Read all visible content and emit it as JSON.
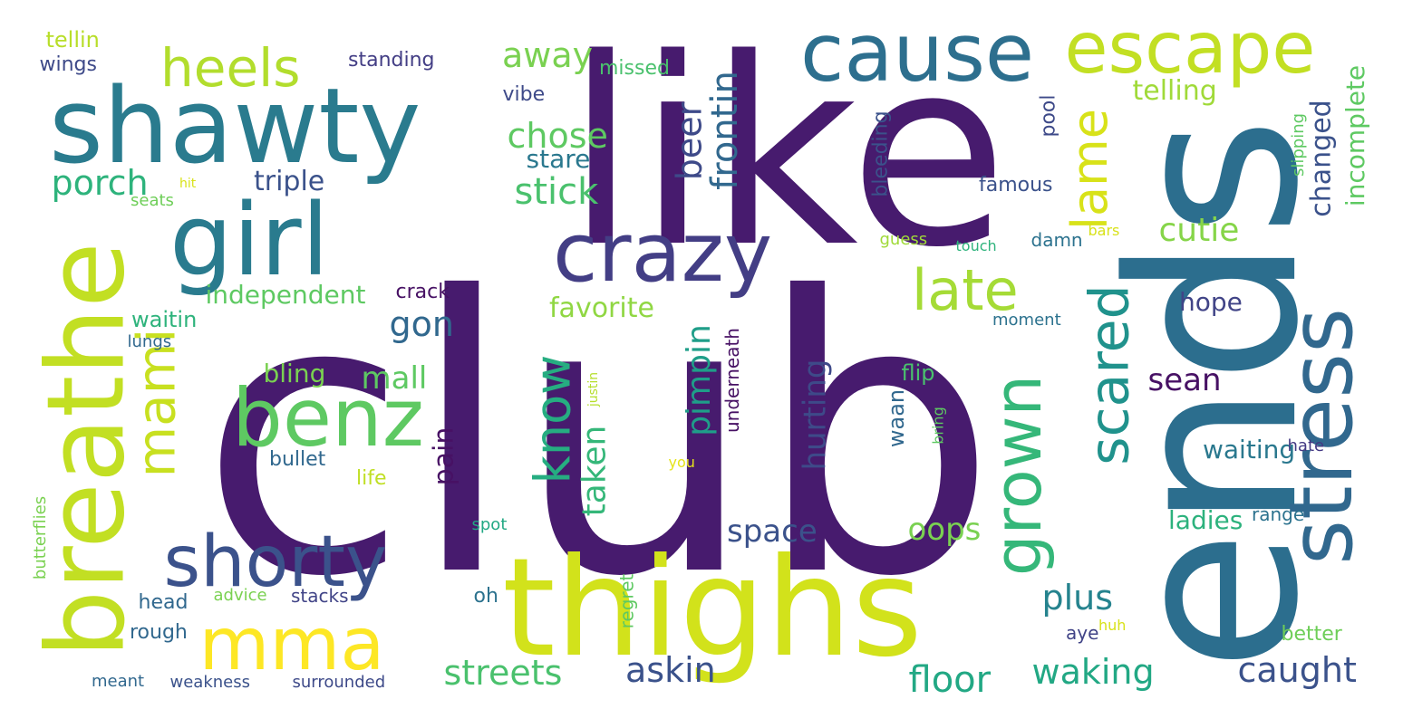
{
  "cloud": {
    "words": [
      {
        "text": "club",
        "color": "#471b6e"
      },
      {
        "text": "like",
        "color": "#471b6e"
      },
      {
        "text": "ends",
        "color": "#2c6e8e"
      },
      {
        "text": "thighs",
        "color": "#d2e21b"
      },
      {
        "text": "shawty",
        "color": "#2a7b8e"
      },
      {
        "text": "girl",
        "color": "#2a7b8e"
      },
      {
        "text": "breathe",
        "color": "#c2df23"
      },
      {
        "text": "crazy",
        "color": "#433e85"
      },
      {
        "text": "cause",
        "color": "#2d6f8e"
      },
      {
        "text": "escape",
        "color": "#c2df23"
      },
      {
        "text": "stress",
        "color": "#31688e"
      },
      {
        "text": "benz",
        "color": "#5ec962"
      },
      {
        "text": "mma",
        "color": "#fde725"
      },
      {
        "text": "shorty",
        "color": "#3b528b"
      },
      {
        "text": "heels",
        "color": "#b2dd2d"
      },
      {
        "text": "mami",
        "color": "#c8e020"
      },
      {
        "text": "grown",
        "color": "#35b779"
      },
      {
        "text": "scared",
        "color": "#20928c"
      },
      {
        "text": "lame",
        "color": "#d8e219"
      },
      {
        "text": "late",
        "color": "#a5db36"
      },
      {
        "text": "know",
        "color": "#26ad81"
      },
      {
        "text": "away",
        "color": "#7ad151"
      },
      {
        "text": "chose",
        "color": "#5ec962"
      },
      {
        "text": "stick",
        "color": "#4ac16d"
      },
      {
        "text": "stare",
        "color": "#2a788e"
      },
      {
        "text": "beer",
        "color": "#3e4a89"
      },
      {
        "text": "frontin",
        "color": "#31688e"
      },
      {
        "text": "porch",
        "color": "#2eb37c"
      },
      {
        "text": "triple",
        "color": "#3b528b"
      },
      {
        "text": "telling",
        "color": "#a0da39"
      },
      {
        "text": "changed",
        "color": "#3b528b"
      },
      {
        "text": "incomplete",
        "color": "#5ec962"
      },
      {
        "text": "cutie",
        "color": "#86d549"
      },
      {
        "text": "gon",
        "color": "#31688e"
      },
      {
        "text": "independent",
        "color": "#5ec962"
      },
      {
        "text": "crack",
        "color": "#471164"
      },
      {
        "text": "favorite",
        "color": "#90d743"
      },
      {
        "text": "pimpin",
        "color": "#1f9e89"
      },
      {
        "text": "hurting",
        "color": "#3e4a89"
      },
      {
        "text": "taken",
        "color": "#35b779"
      },
      {
        "text": "mall",
        "color": "#5ec962"
      },
      {
        "text": "bling",
        "color": "#7ad151"
      },
      {
        "text": "pain",
        "color": "#471164"
      },
      {
        "text": "space",
        "color": "#3b528b"
      },
      {
        "text": "oops",
        "color": "#7ad151"
      },
      {
        "text": "sean",
        "color": "#471164"
      },
      {
        "text": "hope",
        "color": "#414487"
      },
      {
        "text": "waiting",
        "color": "#2a788e"
      },
      {
        "text": "plus",
        "color": "#25838e"
      },
      {
        "text": "ladies",
        "color": "#2db27d"
      },
      {
        "text": "streets",
        "color": "#4ac16d"
      },
      {
        "text": "askin",
        "color": "#3b528b"
      },
      {
        "text": "floor",
        "color": "#22a884"
      },
      {
        "text": "waking",
        "color": "#22a884"
      },
      {
        "text": "caught",
        "color": "#3b528b"
      },
      {
        "text": "tellin",
        "color": "#b8de29"
      },
      {
        "text": "wings",
        "color": "#3e4a89"
      },
      {
        "text": "standing",
        "color": "#433e85"
      },
      {
        "text": "missed",
        "color": "#4ac16d"
      },
      {
        "text": "vibe",
        "color": "#3e4a89"
      },
      {
        "text": "hit",
        "color": "#d8e219"
      },
      {
        "text": "seats",
        "color": "#6ece58"
      },
      {
        "text": "famous",
        "color": "#3b528b"
      },
      {
        "text": "bleeding",
        "color": "#3b528b"
      },
      {
        "text": "pool",
        "color": "#3e4a89"
      },
      {
        "text": "slipping",
        "color": "#5ec962"
      },
      {
        "text": "guess",
        "color": "#a0da39"
      },
      {
        "text": "touch",
        "color": "#2eb37c"
      },
      {
        "text": "damn",
        "color": "#2c728e"
      },
      {
        "text": "bars",
        "color": "#d8e219"
      },
      {
        "text": "waitin",
        "color": "#2eb37c"
      },
      {
        "text": "lungs",
        "color": "#31688e"
      },
      {
        "text": "moment",
        "color": "#2c728e"
      },
      {
        "text": "justin",
        "color": "#b5de2b"
      },
      {
        "text": "underneath",
        "color": "#471164"
      },
      {
        "text": "flip",
        "color": "#4ac16d"
      },
      {
        "text": "waan",
        "color": "#31688e"
      },
      {
        "text": "bring",
        "color": "#5ec962"
      },
      {
        "text": "hate",
        "color": "#443983"
      },
      {
        "text": "bullet",
        "color": "#31688e"
      },
      {
        "text": "life",
        "color": "#c0df25"
      },
      {
        "text": "you",
        "color": "#e5e419"
      },
      {
        "text": "spot",
        "color": "#22a884"
      },
      {
        "text": "range",
        "color": "#2c728e"
      },
      {
        "text": "butterflies",
        "color": "#7ad151"
      },
      {
        "text": "head",
        "color": "#31688e"
      },
      {
        "text": "advice",
        "color": "#7ad151"
      },
      {
        "text": "stacks",
        "color": "#414487"
      },
      {
        "text": "oh",
        "color": "#2c728e"
      },
      {
        "text": "regret",
        "color": "#5ec962"
      },
      {
        "text": "aye",
        "color": "#414487"
      },
      {
        "text": "huh",
        "color": "#d8e219"
      },
      {
        "text": "better",
        "color": "#6ece58"
      },
      {
        "text": "rough",
        "color": "#31688e"
      },
      {
        "text": "meant",
        "color": "#31688e"
      },
      {
        "text": "weakness",
        "color": "#3b528b"
      },
      {
        "text": "surrounded",
        "color": "#3e4a89"
      }
    ]
  }
}
